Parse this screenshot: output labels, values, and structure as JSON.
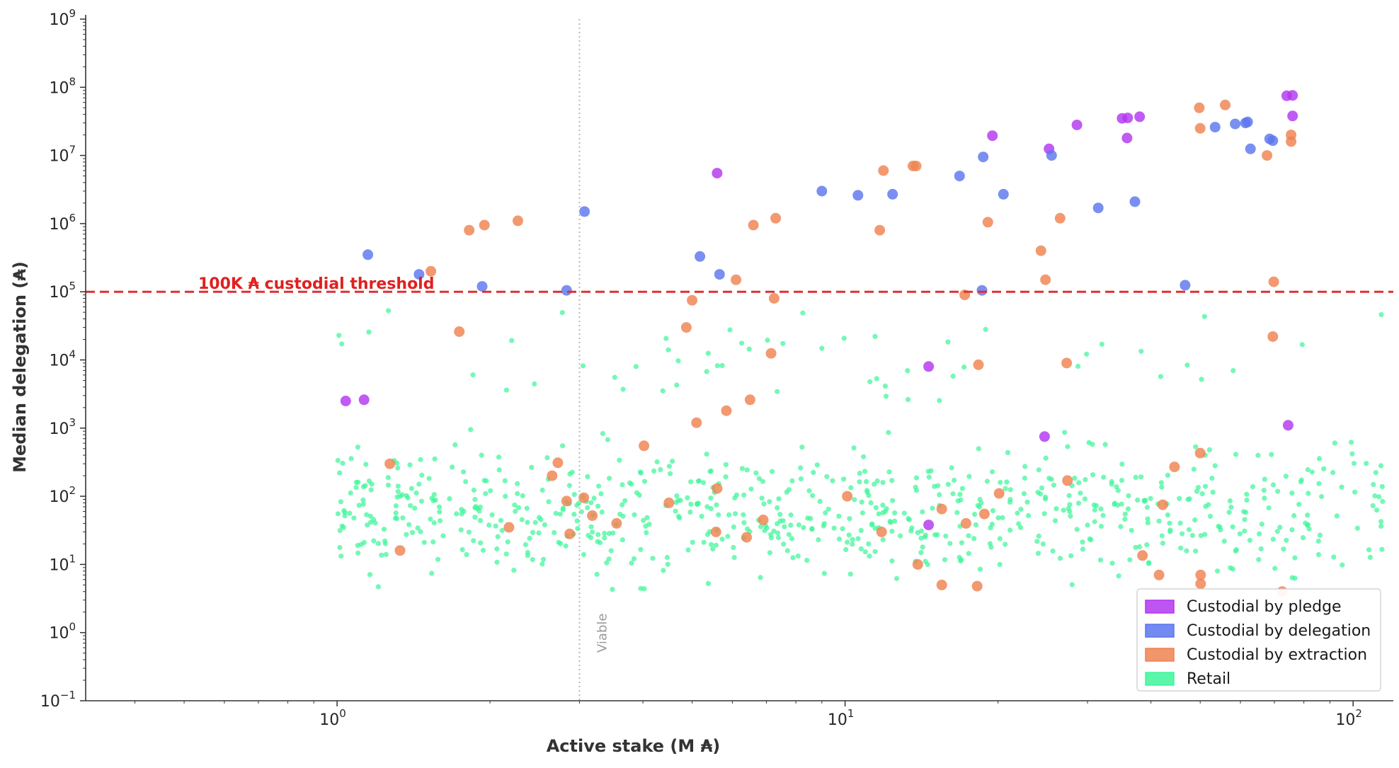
{
  "chart_data": {
    "type": "scatter",
    "xlabel": "Active stake (M ₳)",
    "ylabel": "Median delegation (₳)",
    "x_scale": "log",
    "y_scale": "log",
    "xlim": [
      0.32,
      120
    ],
    "ylim": [
      0.1,
      1000000000
    ],
    "x_ticks": [
      {
        "value": 1,
        "mant": "10",
        "exp": "0"
      },
      {
        "value": 10,
        "mant": "10",
        "exp": "1"
      },
      {
        "value": 100,
        "mant": "10",
        "exp": "2"
      }
    ],
    "y_ticks": [
      {
        "value": 0.1,
        "mant": "10",
        "exp": "−1"
      },
      {
        "value": 1,
        "mant": "10",
        "exp": "0"
      },
      {
        "value": 10,
        "mant": "10",
        "exp": "1"
      },
      {
        "value": 100,
        "mant": "10",
        "exp": "2"
      },
      {
        "value": 1000,
        "mant": "10",
        "exp": "3"
      },
      {
        "value": 10000,
        "mant": "10",
        "exp": "4"
      },
      {
        "value": 100000,
        "mant": "10",
        "exp": "5"
      },
      {
        "value": 1000000,
        "mant": "10",
        "exp": "6"
      },
      {
        "value": 10000000,
        "mant": "10",
        "exp": "7"
      },
      {
        "value": 100000000,
        "mant": "10",
        "exp": "8"
      },
      {
        "value": 1000000000,
        "mant": "10",
        "exp": "9"
      }
    ],
    "grid": false,
    "legend_position": "bottom-right",
    "threshold": {
      "y": 100000,
      "label": "100K ₳ custodial threshold",
      "color": "#e03030"
    },
    "viable_line": {
      "x": 3,
      "label": "Viable",
      "color": "#b8b8b8"
    },
    "series": [
      {
        "name": "Custodial by pledge",
        "color": "#b237f0",
        "points": [
          [
            1.04,
            2500
          ],
          [
            1.13,
            2600
          ],
          [
            5.6,
            5500000
          ],
          [
            14.6,
            8000
          ],
          [
            14.6,
            38
          ],
          [
            19.5,
            19500000
          ],
          [
            25.2,
            12500000
          ],
          [
            24.7,
            750
          ],
          [
            28.6,
            28000000
          ],
          [
            35.1,
            35000000
          ],
          [
            36.0,
            35500000
          ],
          [
            35.9,
            18000000
          ],
          [
            38.0,
            37000000
          ],
          [
            74.0,
            75000000
          ],
          [
            76.0,
            76000000
          ],
          [
            76.0,
            38000000
          ],
          [
            74.5,
            1100
          ]
        ]
      },
      {
        "name": "Custodial by delegation",
        "color": "#5b76ee",
        "points": [
          [
            1.15,
            350000
          ],
          [
            1.45,
            180000
          ],
          [
            1.93,
            120000
          ],
          [
            2.83,
            105000
          ],
          [
            3.07,
            1500000
          ],
          [
            5.18,
            330000
          ],
          [
            5.66,
            180000
          ],
          [
            9.0,
            3000000
          ],
          [
            10.6,
            2600000
          ],
          [
            12.4,
            2700000
          ],
          [
            16.8,
            5000000
          ],
          [
            18.7,
            9500000
          ],
          [
            20.5,
            2700000
          ],
          [
            18.6,
            105000
          ],
          [
            25.5,
            10000000
          ],
          [
            31.5,
            1700000
          ],
          [
            37.2,
            2100000
          ],
          [
            46.7,
            125000
          ],
          [
            53.5,
            26000000
          ],
          [
            58.6,
            29000000
          ],
          [
            61.4,
            30000000
          ],
          [
            62.0,
            31000000
          ],
          [
            62.8,
            12500000
          ],
          [
            68.5,
            17500000
          ],
          [
            69.5,
            16500000
          ]
        ]
      },
      {
        "name": "Custodial by extraction",
        "color": "#ef8250",
        "points": [
          [
            1.53,
            200000
          ],
          [
            1.74,
            26000
          ],
          [
            1.82,
            800000
          ],
          [
            1.95,
            950000
          ],
          [
            2.27,
            1100000
          ],
          [
            1.27,
            300
          ],
          [
            1.33,
            16
          ],
          [
            2.18,
            35
          ],
          [
            2.65,
            200
          ],
          [
            2.72,
            310
          ],
          [
            2.83,
            85
          ],
          [
            2.87,
            28
          ],
          [
            3.06,
            95
          ],
          [
            3.18,
            52
          ],
          [
            3.55,
            40
          ],
          [
            4.02,
            550
          ],
          [
            4.5,
            80
          ],
          [
            4.87,
            30000
          ],
          [
            5.0,
            75000
          ],
          [
            5.1,
            1200
          ],
          [
            5.6,
            130
          ],
          [
            5.57,
            30
          ],
          [
            5.84,
            1800
          ],
          [
            6.1,
            150000
          ],
          [
            6.4,
            25
          ],
          [
            6.5,
            2600
          ],
          [
            6.6,
            950000
          ],
          [
            6.9,
            45
          ],
          [
            7.15,
            12500
          ],
          [
            7.25,
            80000
          ],
          [
            7.3,
            1200000
          ],
          [
            10.1,
            100
          ],
          [
            11.7,
            800000
          ],
          [
            11.9,
            6000000
          ],
          [
            11.8,
            30
          ],
          [
            13.6,
            7000000
          ],
          [
            13.8,
            7000000
          ],
          [
            13.9,
            10
          ],
          [
            15.5,
            5
          ],
          [
            15.5,
            65
          ],
          [
            17.2,
            90000
          ],
          [
            17.3,
            40
          ],
          [
            18.3,
            8500
          ],
          [
            18.2,
            4.8
          ],
          [
            18.8,
            55
          ],
          [
            19.1,
            1050000
          ],
          [
            20.1,
            110
          ],
          [
            24.3,
            400000
          ],
          [
            24.8,
            150000
          ],
          [
            26.5,
            1200000
          ],
          [
            27.3,
            9000
          ],
          [
            27.4,
            170
          ],
          [
            38.5,
            13.5
          ],
          [
            41.5,
            7
          ],
          [
            42.2,
            75
          ],
          [
            44.5,
            270
          ],
          [
            49.8,
            50000000
          ],
          [
            50.0,
            25000000
          ],
          [
            50.0,
            430
          ],
          [
            50.1,
            7
          ],
          [
            50.1,
            5.2
          ],
          [
            56.0,
            55000000
          ],
          [
            67.7,
            10000000
          ],
          [
            69.8,
            140000
          ],
          [
            69.5,
            22000
          ],
          [
            72.5,
            4
          ],
          [
            75.5,
            20000000
          ],
          [
            75.5,
            16000000
          ]
        ]
      }
    ]
  },
  "legend": [
    {
      "label": "Custodial by pledge",
      "color": "#b237f0"
    },
    {
      "label": "Custodial by delegation",
      "color": "#5b76ee"
    },
    {
      "label": "Custodial by extraction",
      "color": "#ef8250"
    },
    {
      "label": "Retail",
      "color": "#3ef59a"
    }
  ],
  "retail": {
    "name": "Retail",
    "color": "#3ef59a",
    "count": 800,
    "x_range": [
      1.0,
      115
    ],
    "y_range": [
      0.4,
      60000
    ]
  }
}
